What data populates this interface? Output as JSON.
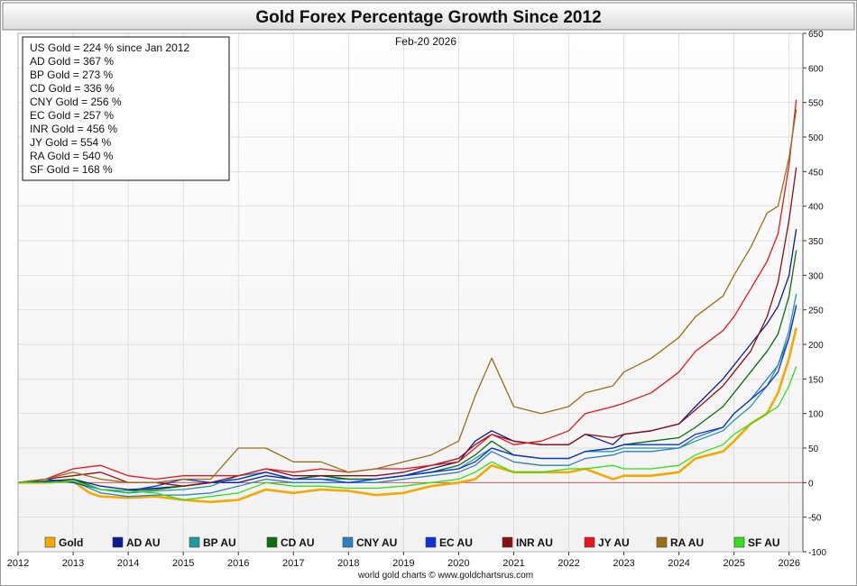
{
  "chart_data": {
    "type": "line",
    "title": "Gold Forex Percentage Growth Since 2012",
    "date_label": "Feb-20  2026",
    "footer": "world gold charts © www.goldchartsrus.com",
    "xlim": [
      2012,
      2026.25
    ],
    "ylim": [
      -100,
      650
    ],
    "x_ticks": [
      2012,
      2013,
      2014,
      2015,
      2016,
      2017,
      2018,
      2019,
      2020,
      2021,
      2022,
      2023,
      2024,
      2025,
      2026
    ],
    "x_tick_labels": [
      "2012",
      "2013",
      "2014",
      "2015",
      "2016",
      "2017",
      "2018",
      "2019",
      "2020",
      "2021",
      "2022",
      "2023",
      "2024",
      "2025",
      "2026"
    ],
    "y_ticks": [
      -100,
      -50,
      0,
      50,
      100,
      150,
      200,
      250,
      300,
      350,
      400,
      450,
      500,
      550,
      600,
      650
    ],
    "y_tick_labels": [
      "-100",
      "-50",
      "0",
      "50",
      "100",
      "150",
      "200",
      "250",
      "300",
      "350",
      "400",
      "450",
      "500",
      "550",
      "600",
      "650"
    ],
    "grid": true,
    "legend_position": "bottom",
    "stats_box": [
      "US Gold = 224 % since Jan 2012",
      "AD Gold = 367 %",
      "BP Gold = 273 %",
      "CD Gold = 336 %",
      "CNY Gold = 256 %",
      "EC Gold = 257 %",
      "INR Gold = 456 %",
      "JY Gold = 554 %",
      "RA Gold = 540 %",
      "SF Gold = 168 %"
    ],
    "series": [
      {
        "name": "Gold",
        "color": "#f5a800",
        "x": [
          2012,
          2012.5,
          2013,
          2013.3,
          2013.5,
          2014,
          2014.5,
          2015,
          2015.5,
          2016,
          2016.5,
          2017,
          2017.5,
          2018,
          2018.5,
          2019,
          2019.5,
          2020,
          2020.3,
          2020.6,
          2021,
          2021.5,
          2022,
          2022.3,
          2022.8,
          2023,
          2023.5,
          2024,
          2024.3,
          2024.8,
          2025,
          2025.3,
          2025.6,
          2025.8,
          2026,
          2026.13
        ],
        "y": [
          0,
          0,
          2,
          -15,
          -20,
          -22,
          -20,
          -25,
          -28,
          -25,
          -10,
          -15,
          -10,
          -12,
          -18,
          -15,
          -5,
          0,
          5,
          25,
          15,
          15,
          15,
          20,
          5,
          10,
          10,
          15,
          35,
          45,
          60,
          85,
          100,
          130,
          180,
          224
        ]
      },
      {
        "name": "AD AU",
        "color": "#0a1c8c",
        "x": [
          2012,
          2012.5,
          2013,
          2013.5,
          2014,
          2014.5,
          2015,
          2015.5,
          2016,
          2016.5,
          2017,
          2017.5,
          2018,
          2018.5,
          2019,
          2019.5,
          2020,
          2020.3,
          2020.6,
          2021,
          2021.5,
          2022,
          2022.3,
          2022.8,
          2023,
          2023.5,
          2024,
          2024.3,
          2024.8,
          2025,
          2025.3,
          2025.6,
          2025.8,
          2026,
          2026.13
        ],
        "y": [
          0,
          2,
          5,
          -5,
          -10,
          -8,
          -5,
          0,
          0,
          10,
          5,
          10,
          5,
          5,
          10,
          20,
          30,
          60,
          75,
          60,
          55,
          55,
          70,
          55,
          70,
          75,
          85,
          110,
          150,
          170,
          200,
          230,
          255,
          300,
          367
        ]
      },
      {
        "name": "BP AU",
        "color": "#1f9aa0",
        "x": [
          2012,
          2012.5,
          2013,
          2013.5,
          2014,
          2014.5,
          2015,
          2015.5,
          2016,
          2016.5,
          2017,
          2017.5,
          2018,
          2018.5,
          2019,
          2019.5,
          2020,
          2020.3,
          2020.6,
          2021,
          2021.5,
          2022,
          2022.3,
          2022.8,
          2023,
          2023.5,
          2024,
          2024.3,
          2024.8,
          2025,
          2025.3,
          2025.6,
          2025.8,
          2026,
          2026.13
        ],
        "y": [
          0,
          0,
          5,
          -10,
          -15,
          -12,
          -10,
          -5,
          10,
          15,
          5,
          5,
          5,
          5,
          10,
          15,
          20,
          35,
          50,
          40,
          35,
          35,
          45,
          45,
          50,
          50,
          50,
          60,
          75,
          90,
          110,
          140,
          170,
          220,
          273
        ]
      },
      {
        "name": "CD AU",
        "color": "#0b6e0b",
        "x": [
          2012,
          2012.5,
          2013,
          2013.5,
          2014,
          2014.5,
          2015,
          2015.5,
          2016,
          2016.5,
          2017,
          2017.5,
          2018,
          2018.5,
          2019,
          2019.5,
          2020,
          2020.3,
          2020.6,
          2021,
          2021.5,
          2022,
          2022.3,
          2022.8,
          2023,
          2023.5,
          2024,
          2024.3,
          2024.8,
          2025,
          2025.3,
          2025.6,
          2025.8,
          2026,
          2026.13
        ],
        "y": [
          0,
          0,
          5,
          -10,
          -12,
          -10,
          -5,
          0,
          5,
          15,
          5,
          10,
          5,
          5,
          10,
          15,
          25,
          40,
          60,
          40,
          35,
          35,
          45,
          50,
          55,
          60,
          65,
          80,
          110,
          130,
          160,
          190,
          215,
          270,
          336
        ]
      },
      {
        "name": "CNY AU",
        "color": "#2f7fbf",
        "x": [
          2012,
          2012.5,
          2013,
          2013.5,
          2014,
          2014.5,
          2015,
          2015.5,
          2016,
          2016.5,
          2017,
          2017.5,
          2018,
          2018.5,
          2019,
          2019.5,
          2020,
          2020.3,
          2020.6,
          2021,
          2021.5,
          2022,
          2022.3,
          2022.8,
          2023,
          2023.5,
          2024,
          2024.3,
          2024.8,
          2025,
          2025.3,
          2025.6,
          2025.8,
          2026,
          2026.13
        ],
        "y": [
          0,
          0,
          2,
          -15,
          -20,
          -18,
          -18,
          -15,
          -5,
          5,
          0,
          0,
          0,
          0,
          5,
          10,
          15,
          25,
          45,
          30,
          25,
          25,
          35,
          40,
          45,
          45,
          50,
          65,
          80,
          100,
          120,
          150,
          170,
          210,
          256
        ]
      },
      {
        "name": "EC AU",
        "color": "#1030d8",
        "x": [
          2012,
          2012.5,
          2013,
          2013.5,
          2014,
          2014.5,
          2015,
          2015.5,
          2016,
          2016.5,
          2017,
          2017.5,
          2018,
          2018.5,
          2019,
          2019.5,
          2020,
          2020.3,
          2020.6,
          2021,
          2021.5,
          2022,
          2022.3,
          2022.8,
          2023,
          2023.5,
          2024,
          2024.3,
          2024.8,
          2025,
          2025.3,
          2025.6,
          2025.8,
          2026,
          2026.13
        ],
        "y": [
          0,
          5,
          0,
          -10,
          -12,
          -5,
          5,
          0,
          5,
          15,
          5,
          5,
          0,
          5,
          10,
          15,
          20,
          30,
          50,
          40,
          35,
          35,
          45,
          50,
          55,
          55,
          55,
          70,
          80,
          100,
          120,
          140,
          160,
          210,
          257
        ]
      },
      {
        "name": "INR AU",
        "color": "#8c0f14",
        "x": [
          2012,
          2012.5,
          2013,
          2013.5,
          2014,
          2014.5,
          2015,
          2015.5,
          2016,
          2016.5,
          2017,
          2017.5,
          2018,
          2018.5,
          2019,
          2019.5,
          2020,
          2020.3,
          2020.6,
          2021,
          2021.5,
          2022,
          2022.3,
          2022.8,
          2023,
          2023.5,
          2024,
          2024.3,
          2024.8,
          2025,
          2025.3,
          2025.6,
          2025.8,
          2026,
          2026.13
        ],
        "y": [
          0,
          5,
          10,
          15,
          0,
          0,
          -5,
          0,
          10,
          20,
          10,
          10,
          10,
          10,
          15,
          25,
          35,
          55,
          70,
          60,
          55,
          55,
          70,
          65,
          70,
          75,
          85,
          105,
          140,
          160,
          190,
          240,
          290,
          380,
          456
        ]
      },
      {
        "name": "JY AU",
        "color": "#e8151b",
        "x": [
          2012,
          2012.5,
          2013,
          2013.5,
          2014,
          2014.5,
          2015,
          2015.5,
          2016,
          2016.5,
          2017,
          2017.5,
          2018,
          2018.5,
          2019,
          2019.5,
          2020,
          2020.3,
          2020.6,
          2021,
          2021.5,
          2022,
          2022.3,
          2022.8,
          2023,
          2023.5,
          2024,
          2024.3,
          2024.8,
          2025,
          2025.3,
          2025.6,
          2025.8,
          2026,
          2026.13
        ],
        "y": [
          0,
          5,
          20,
          25,
          10,
          5,
          10,
          10,
          10,
          20,
          15,
          20,
          15,
          20,
          20,
          25,
          30,
          50,
          70,
          55,
          60,
          75,
          100,
          110,
          115,
          130,
          160,
          190,
          220,
          240,
          280,
          320,
          360,
          460,
          554
        ]
      },
      {
        "name": "RA AU",
        "color": "#9c6e14",
        "x": [
          2012,
          2012.5,
          2013,
          2013.5,
          2014,
          2014.5,
          2015,
          2015.5,
          2016,
          2016.5,
          2017,
          2017.5,
          2018,
          2018.5,
          2019,
          2019.5,
          2020,
          2020.3,
          2020.6,
          2021,
          2021.5,
          2022,
          2022.3,
          2022.8,
          2023,
          2023.5,
          2024,
          2024.3,
          2024.8,
          2025,
          2025.3,
          2025.6,
          2025.8,
          2026,
          2026.13
        ],
        "y": [
          0,
          5,
          15,
          5,
          0,
          0,
          5,
          5,
          50,
          50,
          30,
          30,
          15,
          20,
          30,
          40,
          60,
          125,
          180,
          110,
          100,
          110,
          130,
          140,
          160,
          180,
          210,
          240,
          270,
          300,
          340,
          390,
          400,
          470,
          540
        ]
      },
      {
        "name": "SF AU",
        "color": "#2fe01a",
        "x": [
          2012,
          2012.5,
          2013,
          2013.5,
          2014,
          2014.5,
          2015,
          2015.5,
          2016,
          2016.5,
          2017,
          2017.5,
          2018,
          2018.5,
          2019,
          2019.5,
          2020,
          2020.3,
          2020.6,
          2021,
          2021.5,
          2022,
          2022.3,
          2022.8,
          2023,
          2023.5,
          2024,
          2024.3,
          2024.8,
          2025,
          2025.3,
          2025.6,
          2025.8,
          2026,
          2026.13
        ],
        "y": [
          0,
          0,
          2,
          -10,
          -12,
          -15,
          -25,
          -20,
          -15,
          0,
          -5,
          -5,
          -8,
          -8,
          -5,
          0,
          5,
          15,
          30,
          15,
          15,
          20,
          20,
          25,
          20,
          20,
          25,
          40,
          55,
          70,
          85,
          100,
          110,
          140,
          168
        ]
      }
    ]
  }
}
